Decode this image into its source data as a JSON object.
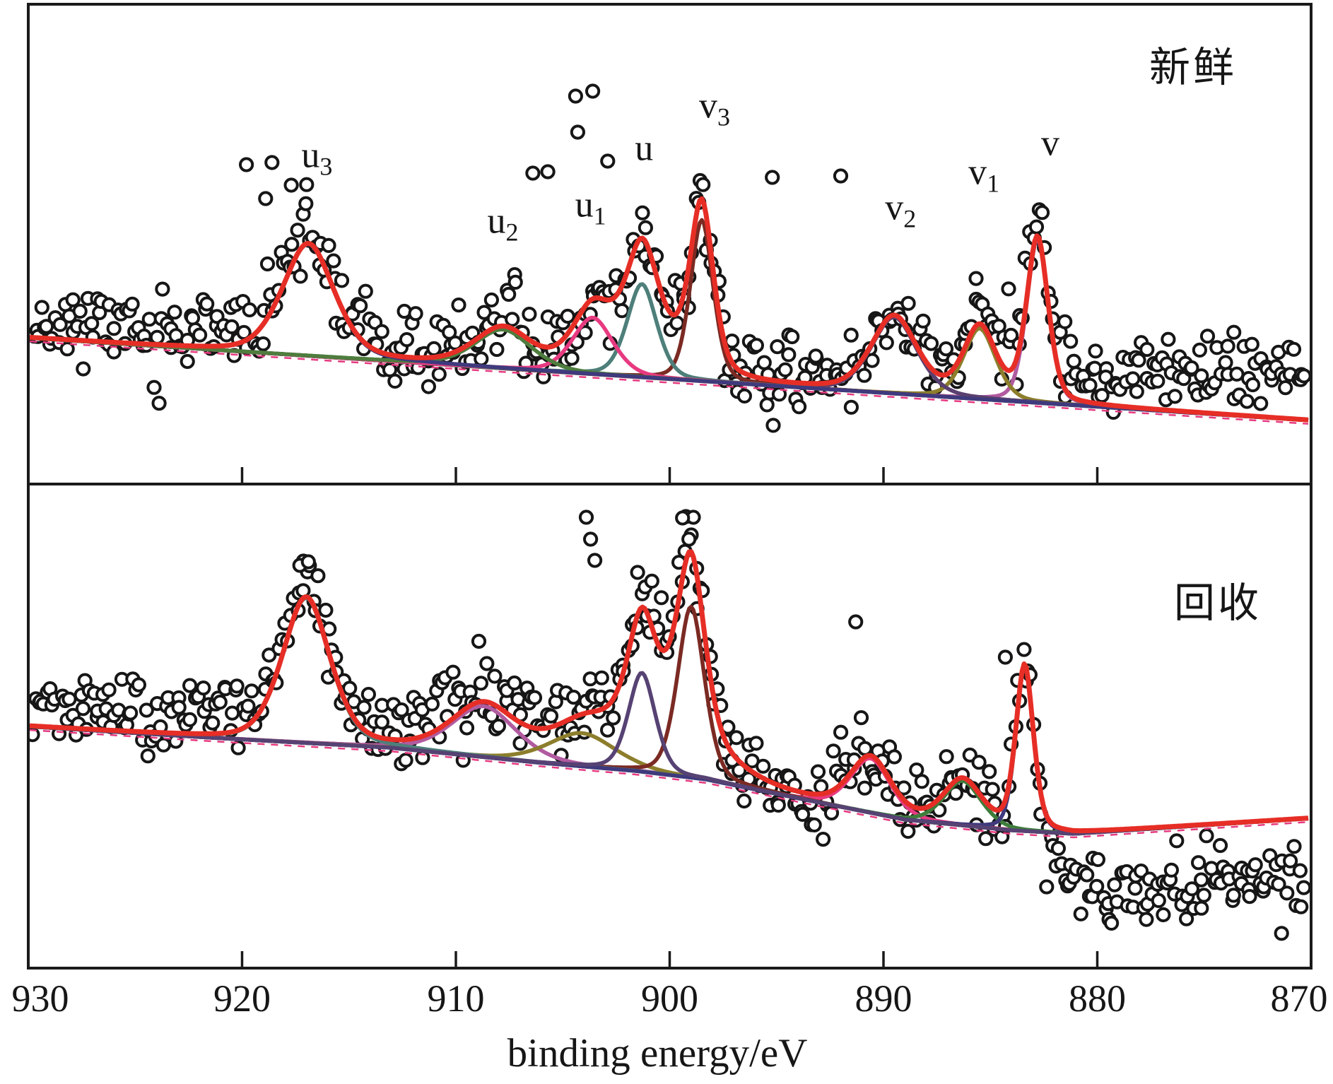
{
  "chart_data": {
    "type": "scatter",
    "description": "Ce 3d XPS spectra: open-circle raw data with red total fit envelope and colored deconvoluted peak components, two stacked panels sharing a reversed binding-energy axis",
    "xlabel": "binding energy/eV",
    "x_axis": {
      "range": [
        930,
        870
      ],
      "ticks": [
        930,
        920,
        910,
        900,
        890,
        880,
        870
      ]
    },
    "y_axis": {
      "label": "",
      "ticks": []
    },
    "marker": {
      "radius": 8.6,
      "stroke": "#161616",
      "stroke_width": 4,
      "fill": "#ffffff"
    },
    "frame_color": "#1a1a1a",
    "panels": [
      {
        "id": "fresh",
        "name": "新鲜",
        "envelope": {
          "color": "#e62e26",
          "overlap": {
            "center": 900.8,
            "amplitude": 55,
            "sigma": 1.88
          }
        },
        "baseline": {
          "color": "#3a3470",
          "points": [
            [
              930,
              207
            ],
            [
              870,
              90
            ]
          ]
        },
        "helper_dash": {
          "color": "#e73a80"
        },
        "components": [
          {
            "id": "v",
            "center": 882.8,
            "amplitude": 232,
            "sigma": 0.53,
            "color": "#b15ba0"
          },
          {
            "id": "v1",
            "center": 885.5,
            "amplitude": 100,
            "sigma": 0.79,
            "color": "#8c7e2c"
          },
          {
            "id": "v2",
            "center": 889.5,
            "amplitude": 108,
            "sigma": 1.12,
            "color": "#5a4070"
          },
          {
            "id": "v3",
            "center": 898.5,
            "amplitude": 228,
            "sigma": 0.56,
            "color": "#7b2a23"
          },
          {
            "id": "u",
            "center": 901.3,
            "amplitude": 132,
            "sigma": 0.73,
            "color": "#4e7f7a"
          },
          {
            "id": "u1",
            "center": 903.6,
            "amplitude": 80,
            "sigma": 0.99,
            "color": "#e73a80"
          },
          {
            "id": "u2",
            "center": 907.8,
            "amplitude": 55,
            "sigma": 1.39,
            "color": "#4e7d3e"
          },
          {
            "id": "u3",
            "center": 916.9,
            "amplitude": 158,
            "sigma": 1.26,
            "color": "#3f3a7d"
          }
        ],
        "peak_labels": [
          {
            "base": "u",
            "sub": "3",
            "eV": 916.5,
            "au": 463
          },
          {
            "base": "u",
            "sub": "2",
            "eV": 907.8,
            "au": 370
          },
          {
            "base": "u",
            "sub": "1",
            "eV": 903.7,
            "au": 393
          },
          {
            "base": "u",
            "sub": "",
            "eV": 901.2,
            "au": 473
          },
          {
            "base": "v",
            "sub": "3",
            "eV": 897.9,
            "au": 533
          },
          {
            "base": "v",
            "sub": "2",
            "eV": 889.2,
            "au": 389
          },
          {
            "base": "v",
            "sub": "1",
            "eV": 885.3,
            "au": 439
          },
          {
            "base": "v",
            "sub": "",
            "eV": 882.2,
            "au": 480
          }
        ],
        "deviation": [
          [
            930,
            26
          ],
          [
            916,
            10
          ],
          [
            908,
            0
          ],
          [
            900,
            0
          ],
          [
            893,
            5
          ],
          [
            886,
            15
          ],
          [
            881,
            35
          ],
          [
            875,
            55
          ],
          [
            870,
            60
          ]
        ],
        "outliers": [
          [
            919.8,
            452
          ],
          [
            918.6,
            455
          ],
          [
            917.7,
            423
          ],
          [
            918.9,
            404
          ],
          [
            906.4,
            440
          ],
          [
            905.7,
            442
          ],
          [
            904.4,
            549
          ],
          [
            903.6,
            556
          ],
          [
            904.3,
            498
          ],
          [
            902.9,
            457
          ],
          [
            895.2,
            434
          ],
          [
            892.0,
            436
          ]
        ],
        "scatter": {
          "n": 470,
          "noise": 27,
          "seed": 11
        }
      },
      {
        "id": "recycled",
        "name": "回收",
        "envelope": {
          "color": "#e62e26",
          "overlap": {
            "center": 900.2,
            "amplitude": 85,
            "sigma": 2.2
          }
        },
        "baseline": {
          "color": "#3a3470",
          "points": [
            [
              930,
              342
            ],
            [
              921.4,
              326
            ],
            [
              913.1,
              312
            ],
            [
              906.2,
              291
            ],
            [
              901.6,
              279
            ],
            [
              898.3,
              267
            ],
            [
              893.3,
              236
            ],
            [
              889.0,
              210
            ],
            [
              884.0,
              195
            ],
            [
              881.1,
              190
            ],
            [
              875.1,
              202
            ],
            [
              870,
              212
            ]
          ]
        },
        "helper_dash": {
          "color": "#e73a80"
        },
        "components": [
          {
            "id": "v2",
            "center": 890.6,
            "amplitude": 77,
            "sigma": 0.99,
            "color": "#e73a80"
          },
          {
            "id": "u2",
            "center": 908.7,
            "amplitude": 72,
            "sigma": 1.59,
            "color": "#b15ba0"
          },
          {
            "id": "u1",
            "center": 904.1,
            "amplitude": 47,
            "sigma": 1.65,
            "color": "#8c7e2c"
          },
          {
            "id": "v3",
            "center": 899.0,
            "amplitude": 242,
            "sigma": 0.66,
            "color": "#7b2a23"
          },
          {
            "id": "v1",
            "center": 886.3,
            "amplitude": 63,
            "sigma": 0.93,
            "color": "#3e7d3b"
          },
          {
            "id": "u3",
            "center": 917.0,
            "amplitude": 205,
            "sigma": 1.16,
            "color": "#4e7f7a"
          },
          {
            "id": "v",
            "center": 883.4,
            "amplitude": 233,
            "sigma": 0.43,
            "color": "#3f3a7d"
          },
          {
            "id": "u",
            "center": 901.3,
            "amplitude": 140,
            "sigma": 0.66,
            "color": "#564273"
          }
        ],
        "peak_labels": [],
        "deviation": [
          [
            930,
            30
          ],
          [
            917,
            22
          ],
          [
            908,
            6
          ],
          [
            903,
            0
          ],
          [
            884.5,
            0
          ],
          [
            882.8,
            -5
          ],
          [
            881.6,
            -55
          ],
          [
            879.5,
            -90
          ],
          [
            870,
            -85
          ]
        ],
        "outliers": [
          [
            903.9,
            638
          ],
          [
            903.7,
            607
          ],
          [
            903.5,
            577
          ],
          [
            901.5,
            560
          ],
          [
            899.4,
            637
          ],
          [
            899.1,
            607
          ],
          [
            917.3,
            570
          ],
          [
            916.9,
            575
          ],
          [
            891.3,
            490
          ],
          [
            884.3,
            440
          ]
        ],
        "scatter": {
          "n": 470,
          "noise": 27,
          "seed": 23
        }
      }
    ]
  }
}
